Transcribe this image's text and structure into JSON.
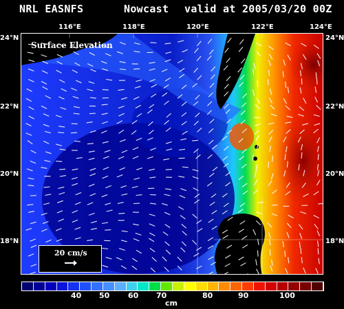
{
  "header": {
    "model": "NRL EASNFS",
    "product": "Nowcast",
    "valid": "valid at 2005/03/20 00Z"
  },
  "map": {
    "title": "Surface Elevation",
    "lon_labels": [
      "116°E",
      "118°E",
      "120°E",
      "122°E",
      "124°E"
    ],
    "lat_labels_left": [
      "24°N",
      "22°N",
      "20°N",
      "18°N"
    ],
    "lat_labels_right": [
      "24°N",
      "22°N",
      "20°N",
      "18°N"
    ],
    "reference_vector": "20 cm/s"
  },
  "colorbar": {
    "unit": "cm",
    "labels": [
      "40",
      "50",
      "60",
      "70",
      "80",
      "90",
      "100"
    ],
    "colors": [
      "#00006e",
      "#000096",
      "#0000be",
      "#0a14dc",
      "#1432f0",
      "#2050ff",
      "#3270ff",
      "#4690ff",
      "#5ab0ff",
      "#3cd2f0",
      "#00e6c8",
      "#00dc46",
      "#64e600",
      "#c8f000",
      "#ffff00",
      "#ffdc00",
      "#ffb400",
      "#ff8c00",
      "#ff6400",
      "#ff3c00",
      "#f01400",
      "#d20000",
      "#b40000",
      "#960000",
      "#780000",
      "#500000"
    ]
  }
}
